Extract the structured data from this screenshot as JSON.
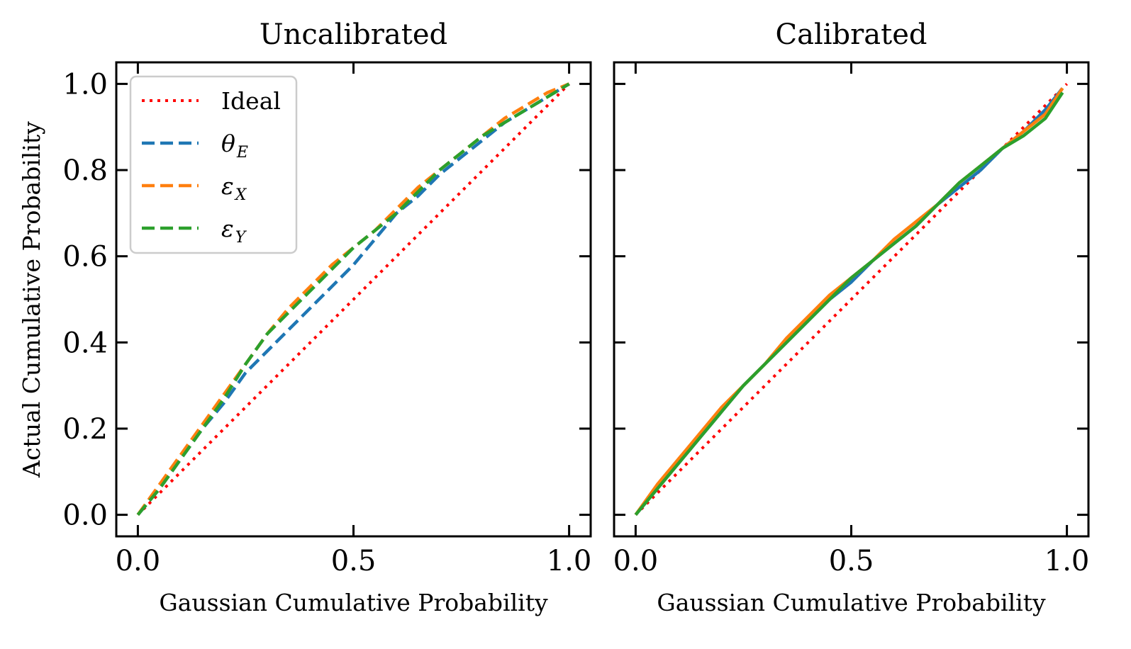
{
  "chart_data": [
    {
      "type": "line",
      "title": "Uncalibrated",
      "xlabel": "Gaussian Cumulative Probability",
      "ylabel": "Actual Cumulative Probability",
      "xlim": [
        -0.05,
        1.05
      ],
      "ylim": [
        -0.05,
        1.05
      ],
      "xticks": [
        "0.0",
        "0.5",
        "1.0"
      ],
      "yticks": [
        "0.0",
        "0.2",
        "0.4",
        "0.6",
        "0.8",
        "1.0"
      ],
      "grid": false,
      "legend": "top-left",
      "series": [
        {
          "name": "Ideal",
          "color": "#ff0000",
          "dash": "dotted",
          "x": [
            0,
            1
          ],
          "y": [
            0,
            1
          ]
        },
        {
          "name": "θ",
          "sub": "E",
          "color": "#1f77b4",
          "dash": "dashed",
          "x": [
            0,
            0.05,
            0.1,
            0.15,
            0.2,
            0.25,
            0.3,
            0.35,
            0.4,
            0.45,
            0.5,
            0.55,
            0.6,
            0.65,
            0.7,
            0.75,
            0.8,
            0.85,
            0.9,
            0.95,
            1.0
          ],
          "y": [
            0,
            0.06,
            0.13,
            0.2,
            0.26,
            0.33,
            0.38,
            0.43,
            0.48,
            0.53,
            0.58,
            0.64,
            0.7,
            0.74,
            0.79,
            0.83,
            0.87,
            0.91,
            0.94,
            0.97,
            1.0
          ]
        },
        {
          "name": "ε",
          "sub": "X",
          "color": "#ff7f0e",
          "dash": "dashed",
          "x": [
            0,
            0.05,
            0.1,
            0.15,
            0.2,
            0.25,
            0.3,
            0.35,
            0.4,
            0.45,
            0.5,
            0.55,
            0.6,
            0.65,
            0.7,
            0.75,
            0.8,
            0.85,
            0.9,
            0.95,
            1.0
          ],
          "y": [
            0,
            0.07,
            0.14,
            0.21,
            0.28,
            0.35,
            0.42,
            0.48,
            0.53,
            0.58,
            0.62,
            0.66,
            0.71,
            0.76,
            0.8,
            0.84,
            0.88,
            0.92,
            0.95,
            0.98,
            1.0
          ]
        },
        {
          "name": "ε",
          "sub": "Y",
          "color": "#2ca02c",
          "dash": "dashed",
          "x": [
            0,
            0.05,
            0.1,
            0.15,
            0.2,
            0.25,
            0.3,
            0.35,
            0.4,
            0.45,
            0.5,
            0.55,
            0.6,
            0.65,
            0.7,
            0.75,
            0.8,
            0.85,
            0.9,
            0.95,
            1.0
          ],
          "y": [
            0,
            0.06,
            0.13,
            0.2,
            0.27,
            0.35,
            0.42,
            0.47,
            0.52,
            0.57,
            0.62,
            0.66,
            0.7,
            0.75,
            0.8,
            0.84,
            0.88,
            0.91,
            0.94,
            0.97,
            1.0
          ]
        }
      ]
    },
    {
      "type": "line",
      "title": "Calibrated",
      "xlabel": "Gaussian Cumulative Probability",
      "ylabel": "",
      "xlim": [
        -0.05,
        1.05
      ],
      "ylim": [
        -0.05,
        1.05
      ],
      "xticks": [
        "0.0",
        "0.5",
        "1.0"
      ],
      "yticks": [
        "",
        "",
        "",
        "",
        "",
        ""
      ],
      "grid": false,
      "series": [
        {
          "name": "Ideal",
          "color": "#ff0000",
          "dash": "dotted",
          "x": [
            0,
            1
          ],
          "y": [
            0,
            1
          ]
        },
        {
          "name": "θ",
          "sub": "E",
          "color": "#1f77b4",
          "dash": "solid",
          "x": [
            0,
            0.05,
            0.1,
            0.15,
            0.2,
            0.25,
            0.3,
            0.35,
            0.4,
            0.45,
            0.5,
            0.55,
            0.6,
            0.65,
            0.7,
            0.75,
            0.8,
            0.85,
            0.9,
            0.95,
            0.99
          ],
          "y": [
            0,
            0.06,
            0.12,
            0.18,
            0.24,
            0.3,
            0.35,
            0.4,
            0.45,
            0.5,
            0.54,
            0.59,
            0.63,
            0.67,
            0.72,
            0.76,
            0.8,
            0.85,
            0.89,
            0.94,
            0.99
          ]
        },
        {
          "name": "ε",
          "sub": "X",
          "color": "#ff7f0e",
          "dash": "solid",
          "x": [
            0,
            0.05,
            0.1,
            0.15,
            0.2,
            0.25,
            0.3,
            0.35,
            0.4,
            0.45,
            0.5,
            0.55,
            0.6,
            0.65,
            0.7,
            0.75,
            0.8,
            0.85,
            0.9,
            0.95,
            0.99
          ],
          "y": [
            0,
            0.07,
            0.13,
            0.19,
            0.25,
            0.3,
            0.35,
            0.41,
            0.46,
            0.51,
            0.55,
            0.59,
            0.64,
            0.68,
            0.72,
            0.77,
            0.81,
            0.85,
            0.89,
            0.93,
            0.99
          ]
        },
        {
          "name": "ε",
          "sub": "Y",
          "color": "#2ca02c",
          "dash": "solid",
          "x": [
            0,
            0.05,
            0.1,
            0.15,
            0.2,
            0.25,
            0.3,
            0.35,
            0.4,
            0.45,
            0.5,
            0.55,
            0.6,
            0.65,
            0.7,
            0.75,
            0.8,
            0.85,
            0.9,
            0.95,
            0.99
          ],
          "y": [
            0,
            0.06,
            0.12,
            0.18,
            0.24,
            0.3,
            0.35,
            0.4,
            0.45,
            0.5,
            0.55,
            0.59,
            0.63,
            0.67,
            0.72,
            0.77,
            0.81,
            0.85,
            0.88,
            0.92,
            0.98
          ]
        }
      ]
    }
  ]
}
